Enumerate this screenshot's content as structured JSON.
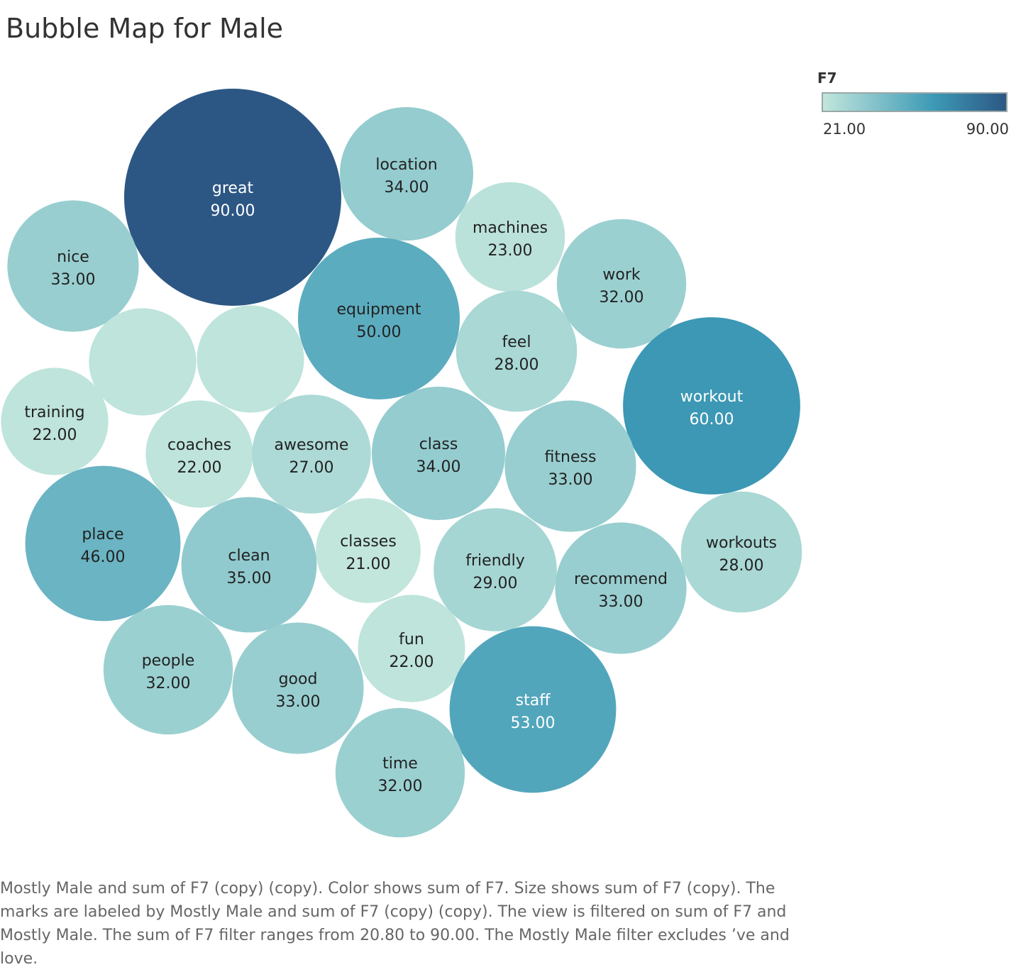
{
  "title": "Bubble Map for Male",
  "legend": {
    "title": "F7",
    "min_label": "21.00",
    "max_label": "90.00",
    "color_low": "#c2e6dc",
    "color_mid": "#3d9ab6",
    "color_high": "#2c5784"
  },
  "caption": "Mostly Male and sum of F7 (copy) (copy).  Color shows sum of F7.  Size shows sum of F7 (copy).  The marks are labeled by Mostly Male and sum of F7 (copy) (copy). The view is filtered on sum of F7 and Mostly Male. The sum of F7 filter ranges from 20.80 to 90.00. The Mostly Male filter excludes ’ve and love.",
  "chart_data": {
    "type": "bubble",
    "color_measure": "sum of F7",
    "size_measure": "sum of F7 (copy)",
    "color_range": [
      21,
      90
    ],
    "bubbles": [
      {
        "word": "great",
        "value": 90
      },
      {
        "word": "location",
        "value": 34
      },
      {
        "word": "machines",
        "value": 23
      },
      {
        "word": "nice",
        "value": 33
      },
      {
        "word": "work",
        "value": 32
      },
      {
        "word": "equipment",
        "value": 50
      },
      {
        "word": "feel",
        "value": 28
      },
      {
        "word": "",
        "value": 22
      },
      {
        "word": "",
        "value": 22
      },
      {
        "word": "workout",
        "value": 60
      },
      {
        "word": "training",
        "value": 22
      },
      {
        "word": "coaches",
        "value": 22
      },
      {
        "word": "awesome",
        "value": 27
      },
      {
        "word": "class",
        "value": 34
      },
      {
        "word": "fitness",
        "value": 33
      },
      {
        "word": "place",
        "value": 46
      },
      {
        "word": "clean",
        "value": 35
      },
      {
        "word": "classes",
        "value": 21
      },
      {
        "word": "friendly",
        "value": 29
      },
      {
        "word": "recommend",
        "value": 33
      },
      {
        "word": "workouts",
        "value": 28
      },
      {
        "word": "people",
        "value": 32
      },
      {
        "word": "good",
        "value": 33
      },
      {
        "word": "fun",
        "value": 22
      },
      {
        "word": "staff",
        "value": 53
      },
      {
        "word": "time",
        "value": 32
      }
    ]
  }
}
